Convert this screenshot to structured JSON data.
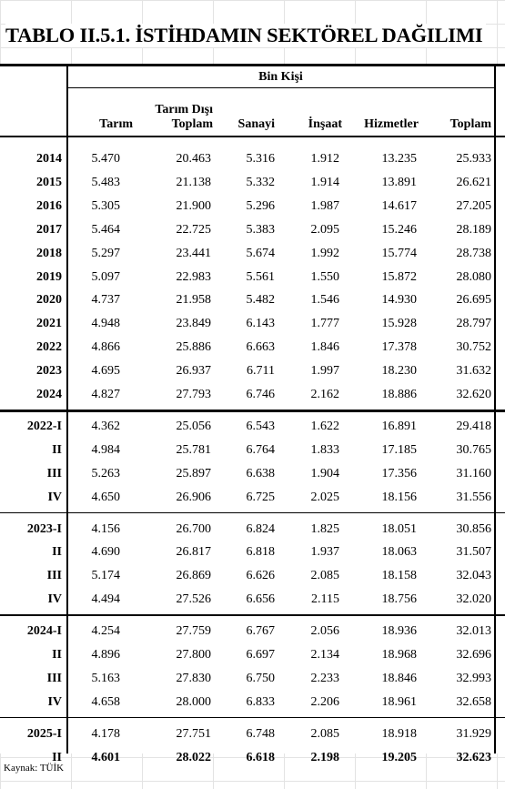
{
  "title": "TABLO II.5.1. İSTİHDAMIN SEKTÖREL DAĞILIMI",
  "unit": "Bin Kişi",
  "columns": [
    "Tarım",
    "Tarım Dışı Toplam",
    "Sanayi",
    "İnşaat",
    "Hizmetler",
    "Toplam"
  ],
  "groups": [
    [
      {
        "label": "2014",
        "values": [
          "5.470",
          "20.463",
          "5.316",
          "1.912",
          "13.235",
          "25.933"
        ]
      },
      {
        "label": "2015",
        "values": [
          "5.483",
          "21.138",
          "5.332",
          "1.914",
          "13.891",
          "26.621"
        ]
      },
      {
        "label": "2016",
        "values": [
          "5.305",
          "21.900",
          "5.296",
          "1.987",
          "14.617",
          "27.205"
        ]
      },
      {
        "label": "2017",
        "values": [
          "5.464",
          "22.725",
          "5.383",
          "2.095",
          "15.246",
          "28.189"
        ]
      },
      {
        "label": "2018",
        "values": [
          "5.297",
          "23.441",
          "5.674",
          "1.992",
          "15.774",
          "28.738"
        ]
      },
      {
        "label": "2019",
        "values": [
          "5.097",
          "22.983",
          "5.561",
          "1.550",
          "15.872",
          "28.080"
        ]
      },
      {
        "label": "2020",
        "values": [
          "4.737",
          "21.958",
          "5.482",
          "1.546",
          "14.930",
          "26.695"
        ]
      },
      {
        "label": "2021",
        "values": [
          "4.948",
          "23.849",
          "6.143",
          "1.777",
          "15.928",
          "28.797"
        ]
      },
      {
        "label": "2022",
        "values": [
          "4.866",
          "25.886",
          "6.663",
          "1.846",
          "17.378",
          "30.752"
        ]
      },
      {
        "label": "2023",
        "values": [
          "4.695",
          "26.937",
          "6.711",
          "1.997",
          "18.230",
          "31.632"
        ]
      },
      {
        "label": "2024",
        "values": [
          "4.827",
          "27.793",
          "6.746",
          "2.162",
          "18.886",
          "32.620"
        ]
      }
    ],
    [
      {
        "label": "2022-I",
        "values": [
          "4.362",
          "25.056",
          "6.543",
          "1.622",
          "16.891",
          "29.418"
        ]
      },
      {
        "label": "II",
        "values": [
          "4.984",
          "25.781",
          "6.764",
          "1.833",
          "17.185",
          "30.765"
        ]
      },
      {
        "label": "III",
        "values": [
          "5.263",
          "25.897",
          "6.638",
          "1.904",
          "17.356",
          "31.160"
        ]
      },
      {
        "label": "IV",
        "values": [
          "4.650",
          "26.906",
          "6.725",
          "2.025",
          "18.156",
          "31.556"
        ]
      }
    ],
    [
      {
        "label": "2023-I",
        "values": [
          "4.156",
          "26.700",
          "6.824",
          "1.825",
          "18.051",
          "30.856"
        ]
      },
      {
        "label": "II",
        "values": [
          "4.690",
          "26.817",
          "6.818",
          "1.937",
          "18.063",
          "31.507"
        ]
      },
      {
        "label": "III",
        "values": [
          "5.174",
          "26.869",
          "6.626",
          "2.085",
          "18.158",
          "32.043"
        ]
      },
      {
        "label": "IV",
        "values": [
          "4.494",
          "27.526",
          "6.656",
          "2.115",
          "18.756",
          "32.020"
        ]
      }
    ],
    [
      {
        "label": "2024-I",
        "values": [
          "4.254",
          "27.759",
          "6.767",
          "2.056",
          "18.936",
          "32.013"
        ]
      },
      {
        "label": "II",
        "values": [
          "4.896",
          "27.800",
          "6.697",
          "2.134",
          "18.968",
          "32.696"
        ]
      },
      {
        "label": "III",
        "values": [
          "5.163",
          "27.830",
          "6.750",
          "2.233",
          "18.846",
          "32.993"
        ]
      },
      {
        "label": "IV",
        "values": [
          "4.658",
          "28.000",
          "6.833",
          "2.206",
          "18.961",
          "32.658"
        ]
      }
    ],
    [
      {
        "label": "2025-I",
        "values": [
          "4.178",
          "27.751",
          "6.748",
          "2.085",
          "18.918",
          "31.929"
        ]
      },
      {
        "label": "II",
        "values": [
          "4.601",
          "28.022",
          "6.618",
          "2.198",
          "19.205",
          "32.623"
        ],
        "bold": true
      }
    ]
  ],
  "source": "Kaynak: TÜİK"
}
